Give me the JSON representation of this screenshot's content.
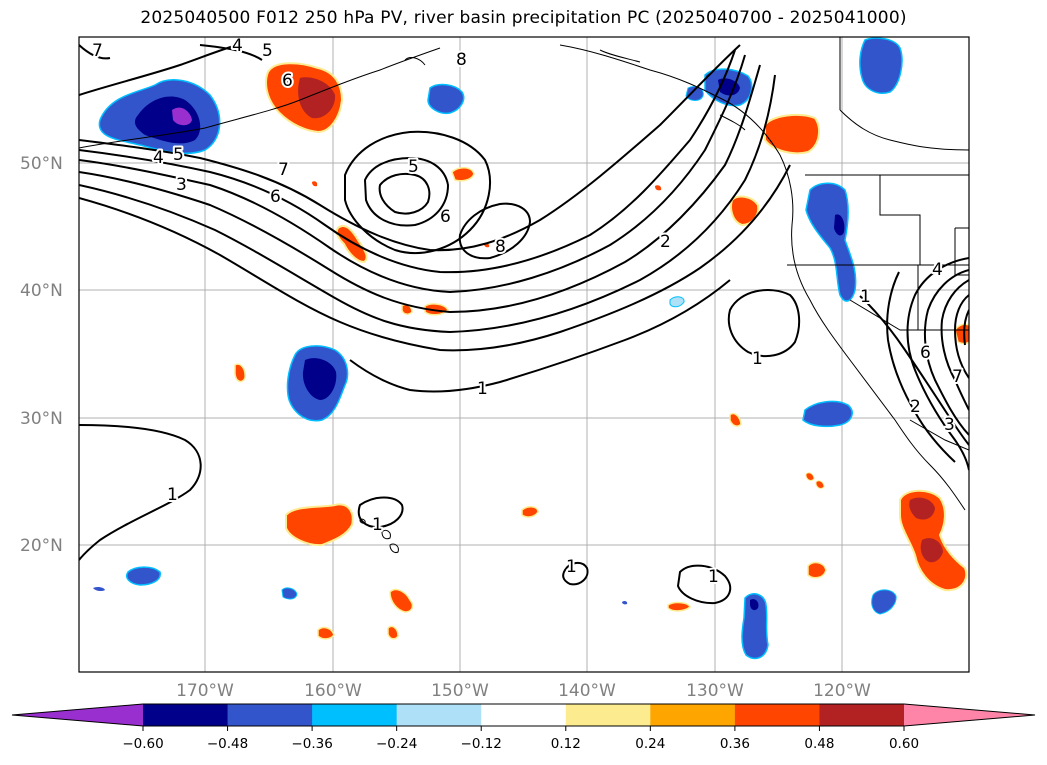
{
  "title": "2025040500 F012 250 hPa PV, river basin precipitation PC (2025040700 - 2025041000)",
  "lat_labels": [
    "50°N",
    "40°N",
    "30°N",
    "20°N"
  ],
  "lon_labels": [
    "170°W",
    "160°W",
    "150°W",
    "140°W",
    "130°W",
    "120°W"
  ],
  "colorbar": {
    "ticks": [
      "−0.60",
      "−0.48",
      "−0.36",
      "−0.24",
      "−0.12",
      "0.12",
      "0.24",
      "0.36",
      "0.48",
      "0.60"
    ],
    "colors": [
      "#9a2fd0",
      "#00008b",
      "#3355cc",
      "#00bfff",
      "#aee0f7",
      "#ffffff",
      "#fdeb90",
      "#ffa500",
      "#ff4500",
      "#b22222",
      "#ff85a8"
    ]
  },
  "contour_labels": {
    "c4": "4",
    "c5a": "5",
    "c7a": "7",
    "c6a": "6",
    "c5b": "5",
    "c4b": "4",
    "c3": "3",
    "c7b": "7",
    "c6b": "6",
    "c5c": "5",
    "c6c": "6",
    "c8": "8",
    "c2": "2",
    "c1a": "1",
    "c1b": "1",
    "c1c": "1",
    "c1d": "1",
    "c1e": "1",
    "c1f": "1",
    "c1g": "1",
    "c8b": "8",
    "c6d": "6",
    "c4c": "4",
    "c3b": "3",
    "c7c": "7",
    "c2b": "2"
  }
}
